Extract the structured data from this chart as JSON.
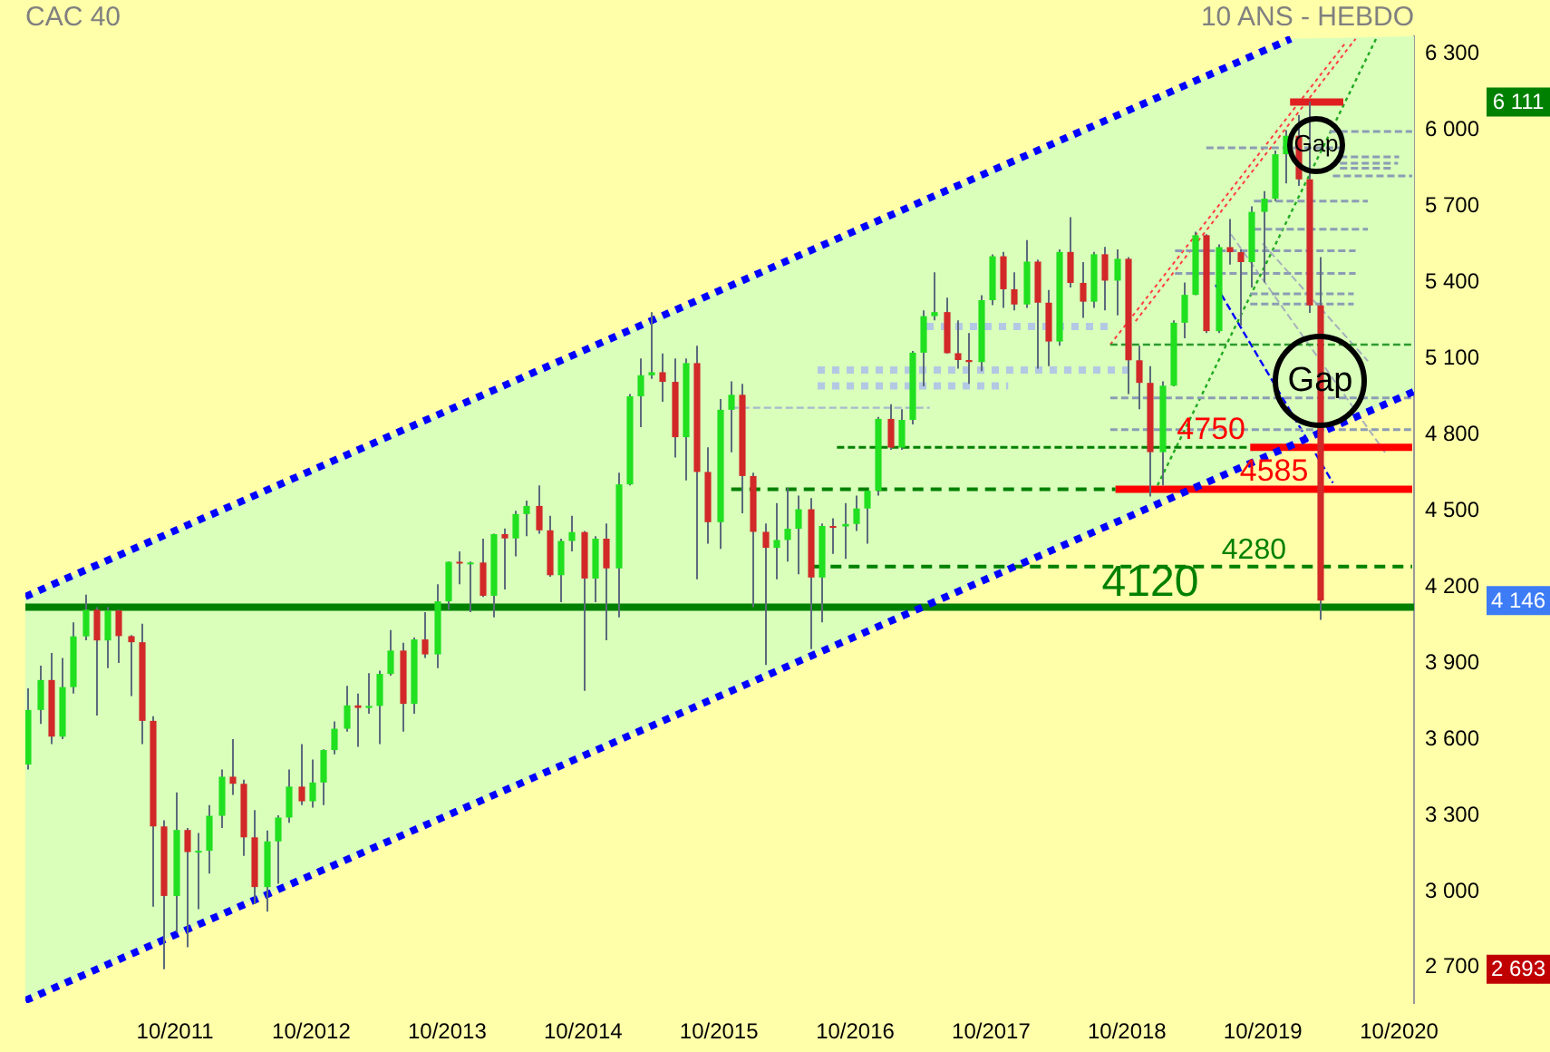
{
  "chart_data": {
    "type": "candlestick",
    "title": "CAC 40",
    "subtitle": "10 ANS - HEBDO",
    "x": [
      "2010-09",
      "2010-10",
      "2010-11",
      "2010-12",
      "2011-01",
      "2011-02",
      "2011-03",
      "2011-04",
      "2011-05",
      "2011-06",
      "2011-07",
      "2011-08",
      "2011-09",
      "2011-10",
      "2011-11",
      "2011-12",
      "2012-01",
      "2012-02",
      "2012-03",
      "2012-04",
      "2012-05",
      "2012-06",
      "2012-07",
      "2012-08",
      "2012-09",
      "2012-10",
      "2012-11",
      "2012-12",
      "2013-01",
      "2013-02",
      "2013-03",
      "2013-04",
      "2013-05",
      "2013-06",
      "2013-07",
      "2013-08",
      "2013-09",
      "2013-10",
      "2013-11",
      "2013-12",
      "2014-01",
      "2014-02",
      "2014-03",
      "2014-04",
      "2014-05",
      "2014-06",
      "2014-07",
      "2014-08",
      "2014-09",
      "2014-10",
      "2014-11",
      "2014-12",
      "2015-01",
      "2015-02",
      "2015-03",
      "2015-04",
      "2015-05",
      "2015-06",
      "2015-07",
      "2015-08",
      "2015-09",
      "2015-10",
      "2015-11",
      "2015-12",
      "2016-01",
      "2016-02",
      "2016-03",
      "2016-04",
      "2016-05",
      "2016-06",
      "2016-07",
      "2016-08",
      "2016-09",
      "2016-10",
      "2016-11",
      "2016-12",
      "2017-01",
      "2017-02",
      "2017-03",
      "2017-04",
      "2017-05",
      "2017-06",
      "2017-07",
      "2017-08",
      "2017-09",
      "2017-10",
      "2017-11",
      "2017-12",
      "2018-01",
      "2018-02",
      "2018-03",
      "2018-04",
      "2018-05",
      "2018-06",
      "2018-07",
      "2018-08",
      "2018-09",
      "2018-10",
      "2018-11",
      "2018-12",
      "2019-01",
      "2019-02",
      "2019-03",
      "2019-04",
      "2019-05",
      "2019-06",
      "2019-07",
      "2019-08",
      "2019-09",
      "2019-10",
      "2019-11",
      "2019-12",
      "2020-01",
      "2020-02",
      "2020-03"
    ],
    "ohlc": [
      [
        3500,
        3800,
        3480,
        3715
      ],
      [
        3715,
        3890,
        3660,
        3833
      ],
      [
        3833,
        3940,
        3580,
        3610
      ],
      [
        3610,
        3920,
        3600,
        3805
      ],
      [
        3805,
        4060,
        3780,
        4005
      ],
      [
        4005,
        4169,
        3990,
        4110
      ],
      [
        4110,
        4120,
        3693,
        3989
      ],
      [
        3989,
        4121,
        3880,
        4107
      ],
      [
        4107,
        4110,
        3900,
        4006
      ],
      [
        4006,
        4010,
        3770,
        3982
      ],
      [
        3982,
        4055,
        3580,
        3672
      ],
      [
        3672,
        3690,
        2940,
        3256
      ],
      [
        3256,
        3280,
        2693,
        2982
      ],
      [
        2982,
        3390,
        2840,
        3242
      ],
      [
        3242,
        3250,
        2780,
        3155
      ],
      [
        3155,
        3230,
        2930,
        3160
      ],
      [
        3160,
        3340,
        3070,
        3298
      ],
      [
        3298,
        3480,
        3250,
        3452
      ],
      [
        3452,
        3600,
        3380,
        3424
      ],
      [
        3424,
        3440,
        3140,
        3213
      ],
      [
        3213,
        3320,
        2950,
        3017
      ],
      [
        3017,
        3240,
        2920,
        3197
      ],
      [
        3197,
        3300,
        3030,
        3291
      ],
      [
        3291,
        3480,
        3270,
        3413
      ],
      [
        3413,
        3580,
        3340,
        3355
      ],
      [
        3355,
        3520,
        3330,
        3429
      ],
      [
        3429,
        3560,
        3340,
        3557
      ],
      [
        3557,
        3670,
        3540,
        3641
      ],
      [
        3641,
        3810,
        3630,
        3733
      ],
      [
        3733,
        3780,
        3570,
        3723
      ],
      [
        3723,
        3860,
        3700,
        3731
      ],
      [
        3731,
        3870,
        3580,
        3857
      ],
      [
        3857,
        4030,
        3850,
        3949
      ],
      [
        3949,
        3980,
        3630,
        3739
      ],
      [
        3739,
        4000,
        3700,
        3993
      ],
      [
        3993,
        4100,
        3920,
        3934
      ],
      [
        3934,
        4210,
        3880,
        4143
      ],
      [
        4143,
        4300,
        4110,
        4299
      ],
      [
        4299,
        4340,
        4210,
        4295
      ],
      [
        4295,
        4300,
        4100,
        4296
      ],
      [
        4296,
        4390,
        4160,
        4165
      ],
      [
        4165,
        4410,
        4080,
        4408
      ],
      [
        4408,
        4430,
        4190,
        4391
      ],
      [
        4391,
        4500,
        4320,
        4487
      ],
      [
        4487,
        4540,
        4400,
        4519
      ],
      [
        4519,
        4600,
        4410,
        4423
      ],
      [
        4423,
        4480,
        4240,
        4246
      ],
      [
        4246,
        4390,
        4140,
        4381
      ],
      [
        4381,
        4480,
        4340,
        4416
      ],
      [
        4416,
        4420,
        3790,
        4233
      ],
      [
        4233,
        4400,
        4140,
        4390
      ],
      [
        4390,
        4450,
        3990,
        4273
      ],
      [
        4273,
        4650,
        4080,
        4604
      ],
      [
        4604,
        4960,
        4600,
        4951
      ],
      [
        4951,
        5100,
        4830,
        5034
      ],
      [
        5034,
        5283,
        5020,
        5046
      ],
      [
        5046,
        5120,
        4930,
        5008
      ],
      [
        5008,
        5100,
        4710,
        4790
      ],
      [
        4790,
        5100,
        4620,
        5082
      ],
      [
        5082,
        5150,
        4230,
        4653
      ],
      [
        4653,
        4750,
        4370,
        4455
      ],
      [
        4455,
        4940,
        4350,
        4898
      ],
      [
        4898,
        5010,
        4730,
        4957
      ],
      [
        4957,
        5000,
        4490,
        4637
      ],
      [
        4637,
        4650,
        4120,
        4417
      ],
      [
        4417,
        4450,
        3892,
        4354
      ],
      [
        4354,
        4530,
        4230,
        4385
      ],
      [
        4385,
        4590,
        4300,
        4429
      ],
      [
        4429,
        4560,
        4250,
        4506
      ],
      [
        4506,
        4550,
        3955,
        4237
      ],
      [
        4237,
        4450,
        4060,
        4440
      ],
      [
        4440,
        4470,
        4330,
        4438
      ],
      [
        4438,
        4530,
        4310,
        4448
      ],
      [
        4448,
        4560,
        4420,
        4509
      ],
      [
        4509,
        4580,
        4370,
        4579
      ],
      [
        4579,
        4870,
        4560,
        4862
      ],
      [
        4862,
        4920,
        4740,
        4749
      ],
      [
        4749,
        4900,
        4740,
        4858
      ],
      [
        4858,
        5130,
        4840,
        5123
      ],
      [
        5123,
        5290,
        4990,
        5267
      ],
      [
        5267,
        5440,
        5250,
        5283
      ],
      [
        5283,
        5340,
        5120,
        5121
      ],
      [
        5121,
        5250,
        5060,
        5094
      ],
      [
        5094,
        5200,
        5000,
        5086
      ],
      [
        5086,
        5350,
        5050,
        5330
      ],
      [
        5330,
        5510,
        5310,
        5503
      ],
      [
        5503,
        5520,
        5300,
        5373
      ],
      [
        5373,
        5440,
        5290,
        5313
      ],
      [
        5313,
        5567,
        5300,
        5482
      ],
      [
        5482,
        5490,
        5060,
        5320
      ],
      [
        5320,
        5370,
        5070,
        5167
      ],
      [
        5167,
        5530,
        5150,
        5520
      ],
      [
        5520,
        5657,
        5380,
        5398
      ],
      [
        5398,
        5480,
        5260,
        5324
      ],
      [
        5324,
        5520,
        5300,
        5511
      ],
      [
        5511,
        5540,
        5290,
        5407
      ],
      [
        5407,
        5530,
        5270,
        5493
      ],
      [
        5493,
        5500,
        4960,
        5093
      ],
      [
        5093,
        5150,
        4900,
        5004
      ],
      [
        5004,
        5070,
        4556,
        4731
      ],
      [
        4731,
        5010,
        4600,
        4993
      ],
      [
        4993,
        5250,
        4990,
        5241
      ],
      [
        5241,
        5400,
        5180,
        5351
      ],
      [
        5351,
        5600,
        5350,
        5586
      ],
      [
        5586,
        5590,
        5200,
        5208
      ],
      [
        5208,
        5550,
        5200,
        5539
      ],
      [
        5539,
        5650,
        5470,
        5519
      ],
      [
        5519,
        5530,
        5230,
        5480
      ],
      [
        5480,
        5700,
        5380,
        5678
      ],
      [
        5678,
        5760,
        5400,
        5730
      ],
      [
        5730,
        5920,
        5720,
        5905
      ],
      [
        5905,
        6000,
        5790,
        5978
      ],
      [
        5978,
        6060,
        5780,
        5806
      ],
      [
        5806,
        6111,
        5280,
        5309
      ],
      [
        5309,
        5500,
        4070,
        4146
      ]
    ],
    "series": [
      {
        "type": "line",
        "x": [
          "2010-08-25",
          "2019-12-15",
          "2020-11-10"
        ],
        "values": [
          4162,
          6360,
          null
        ],
        "lower": [
          2570,
          4757,
          4970
        ],
        "upper": [
          4162,
          6360,
          6370
        ],
        "color": "#0000ff",
        "line_style": "dotted"
      },
      {
        "type": "line",
        "x": [
          "2010-08-25",
          "2020-11-10"
        ],
        "values": [
          2570,
          4970
        ],
        "color": "#0000ff",
        "line_style": "dotted"
      },
      {
        "type": "line",
        "x": [
          "2016-06-08",
          "2020-11-05"
        ],
        "values": [
          4280,
          4280
        ],
        "color": "#008000",
        "line_style": "dashed"
      },
      {
        "type": "line",
        "x": [
          "2016-08-13",
          "2019-08-28"
        ],
        "values": [
          4750,
          4750
        ],
        "color": "#008000",
        "line_style": "dashed"
      },
      {
        "type": "line",
        "x": [
          "2019-08-28",
          "2020-11-05"
        ],
        "values": [
          4750,
          4750
        ],
        "color": "#ff0000",
        "line_style": "solid"
      },
      {
        "type": "line",
        "x": [
          "2015-11-03",
          "2018-08-31"
        ],
        "values": [
          4585,
          4585
        ],
        "color": "#008000",
        "line_style": "dashed"
      },
      {
        "type": "line",
        "x": [
          "2018-08-31",
          "2020-11-05"
        ],
        "values": [
          4585,
          4585
        ],
        "color": "#ff0000",
        "line_style": "solid"
      },
      {
        "type": "line",
        "x": [
          "2019-12-13",
          "2020-05-04"
        ],
        "values": [
          6111,
          6111
        ],
        "color": "#e02020",
        "line_style": "solid"
      },
      {
        "type": "line",
        "x": [
          "2018-08-17",
          "2020-11-05"
        ],
        "values": [
          5155,
          5155
        ],
        "color": "#2e9a2e",
        "line_style": "dashed"
      },
      {
        "type": "line",
        "x": [
          "2017-04-10",
          "2018-08-24"
        ],
        "values": [
          5226,
          5226
        ],
        "color": "#b4c8e4",
        "line_style": "dotted"
      },
      {
        "type": "line",
        "x": [
          "2016-06-22",
          "2018-10-12"
        ],
        "values": [
          5055,
          5055
        ],
        "color": "#b4c8e4",
        "line_style": "dotted"
      },
      {
        "type": "line",
        "x": [
          "2016-06-22",
          "2017-11-16"
        ],
        "values": [
          4992,
          4992
        ],
        "color": "#b4c8e4",
        "line_style": "dotted"
      },
      {
        "type": "line",
        "x": [
          "2015-11-03",
          "2017-04-19"
        ],
        "values": [
          4906,
          4906
        ],
        "color": "#a8b8cc",
        "line_style": "dashed"
      },
      {
        "type": "line",
        "x": [
          "2020-03-28",
          "2020-11-05"
        ],
        "values": [
          5995,
          5995
        ],
        "color": "#8c9cb4",
        "line_style": "dashed"
      },
      {
        "type": "line",
        "x": [
          "2019-05-02",
          "2020-04-29"
        ],
        "values": [
          5930,
          5930
        ],
        "color": "#8c9cb4",
        "line_style": "dashed"
      },
      {
        "type": "line",
        "x": [
          "2020-04-25",
          "2020-10-01"
        ],
        "values": [
          5895,
          5895
        ],
        "color": "#8c9cb4",
        "line_style": "dashed"
      },
      {
        "type": "line",
        "x": [
          "2020-04-25",
          "2020-09-28"
        ],
        "values": [
          5870,
          5870
        ],
        "color": "#8c9cb4",
        "line_style": "dashed"
      },
      {
        "type": "line",
        "x": [
          "2020-04-25",
          "2020-09-17"
        ],
        "values": [
          5850,
          5850
        ],
        "color": "#8c9cb4",
        "line_style": "dashed"
      },
      {
        "type": "line",
        "x": [
          "2020-04-06",
          "2020-11-05"
        ],
        "values": [
          5820,
          5820
        ],
        "color": "#8c9cb4",
        "line_style": "dashed"
      },
      {
        "type": "line",
        "x": [
          "2019-09-07",
          "2020-07-09"
        ],
        "values": [
          5720,
          5720
        ],
        "color": "#8c9cb4",
        "line_style": "dashed"
      },
      {
        "type": "line",
        "x": [
          "2019-09-07",
          "2020-07-09"
        ],
        "values": [
          5610,
          5610
        ],
        "color": "#8c9cb4",
        "line_style": "dashed"
      },
      {
        "type": "line",
        "x": [
          "2019-02-07",
          "2020-06-06"
        ],
        "values": [
          5525,
          5525
        ],
        "color": "#8c9cb4",
        "line_style": "dashed"
      },
      {
        "type": "line",
        "x": [
          "2019-02-07",
          "2020-06-06"
        ],
        "values": [
          5435,
          5435
        ],
        "color": "#8c9cb4",
        "line_style": "dashed"
      },
      {
        "type": "line",
        "x": [
          "2019-08-28",
          "2020-06-01"
        ],
        "values": [
          5355,
          5355
        ],
        "color": "#8c9cb4",
        "line_style": "dashed"
      },
      {
        "type": "line",
        "x": [
          "2019-08-28",
          "2020-06-01"
        ],
        "values": [
          5315,
          5315
        ],
        "color": "#8c9cb4",
        "line_style": "dashed"
      },
      {
        "type": "line",
        "x": [
          "2018-08-17",
          "2020-11-05"
        ],
        "values": [
          4945,
          4945
        ],
        "color": "#8c9cb4",
        "line_style": "dashed"
      },
      {
        "type": "line",
        "x": [
          "2018-08-17",
          "2020-11-05"
        ],
        "values": [
          4820,
          4820
        ],
        "color": "#8c9cb4",
        "line_style": "dashed"
      },
      {
        "type": "line",
        "x": [
          "2018-08-17",
          "2020-05-13"
        ],
        "values": [
          5155,
          6350
        ],
        "color": "#ff4040",
        "line_style": "dotted"
      },
      {
        "type": "line",
        "x": [
          "2018-10-24",
          "2020-06-06"
        ],
        "values": [
          5247,
          6360
        ],
        "color": "#ff4040",
        "line_style": "dotted"
      },
      {
        "type": "line",
        "x": [
          "2018-12-22",
          "2020-07-31"
        ],
        "values": [
          4600,
          6360
        ],
        "color": "#22aa22",
        "line_style": "dotted"
      },
      {
        "type": "line",
        "x": [
          "2019-05-27",
          "2020-04-06"
        ],
        "values": [
          5390,
          4610
        ],
        "color": "#0000ff",
        "line_style": "dashed"
      },
      {
        "type": "line",
        "x": [
          "2019-07-07",
          "2020-08-24"
        ],
        "values": [
          5590,
          4730
        ],
        "color": "#a8b0bc",
        "line_style": "dashed"
      },
      {
        "type": "line",
        "x": [
          "2019-09-30",
          "2020-07-09"
        ],
        "values": [
          5554,
          5090
        ],
        "color": "#a8b0bc",
        "line_style": "dashed"
      }
    ],
    "ref_lines": [
      {
        "axis": "y",
        "value": 4120,
        "label": "4120",
        "color": "#008000"
      }
    ],
    "annotations": [
      {
        "text": "Gap",
        "x": "2020-02-21",
        "y": 5940
      },
      {
        "text": "Gap",
        "x": "2020-03-03",
        "y": 5010
      },
      {
        "text": "4280",
        "x": "2019-09-07",
        "y": 4280
      },
      {
        "text": "4750",
        "x": "2019-05-15",
        "y": 4750
      },
      {
        "text": "4585",
        "x": "2019-10-31",
        "y": 4585
      },
      "6 111",
      "4 146",
      "2 693"
    ],
    "xlim": [
      "2010-08-25",
      "2020-11-10"
    ],
    "xticks": [
      {
        "value": "2011-10",
        "label": "10/2011"
      },
      {
        "value": "2012-10",
        "label": "10/2012"
      },
      {
        "value": "2013-10",
        "label": "10/2013"
      },
      {
        "value": "2014-10",
        "label": "10/2014"
      },
      {
        "value": "2015-10",
        "label": "10/2015"
      },
      {
        "value": "2016-10",
        "label": "10/2016"
      },
      {
        "value": "2017-10",
        "label": "10/2017"
      },
      {
        "value": "2018-10",
        "label": "10/2018"
      },
      {
        "value": "2019-10",
        "label": "10/2019"
      },
      {
        "value": "2020-10",
        "label": "10/2020"
      }
    ],
    "ylim": [
      2560,
      6370
    ],
    "yticks": [
      {
        "value": 2700,
        "label": "2 700"
      },
      {
        "value": 3000,
        "label": "3 000"
      },
      {
        "value": 3300,
        "label": "3 300"
      },
      {
        "value": 3600,
        "label": "3 600"
      },
      {
        "value": 3900,
        "label": "3 900"
      },
      {
        "value": 4200,
        "label": "4 200"
      },
      {
        "value": 4500,
        "label": "4 500"
      },
      {
        "value": 4800,
        "label": "4 800"
      },
      {
        "value": 5100,
        "label": "5 100"
      },
      {
        "value": 5400,
        "label": "5 400"
      },
      {
        "value": 5700,
        "label": "5 700"
      },
      {
        "value": 6000,
        "label": "6 000"
      },
      {
        "value": 6300,
        "label": "6 300"
      }
    ]
  }
}
